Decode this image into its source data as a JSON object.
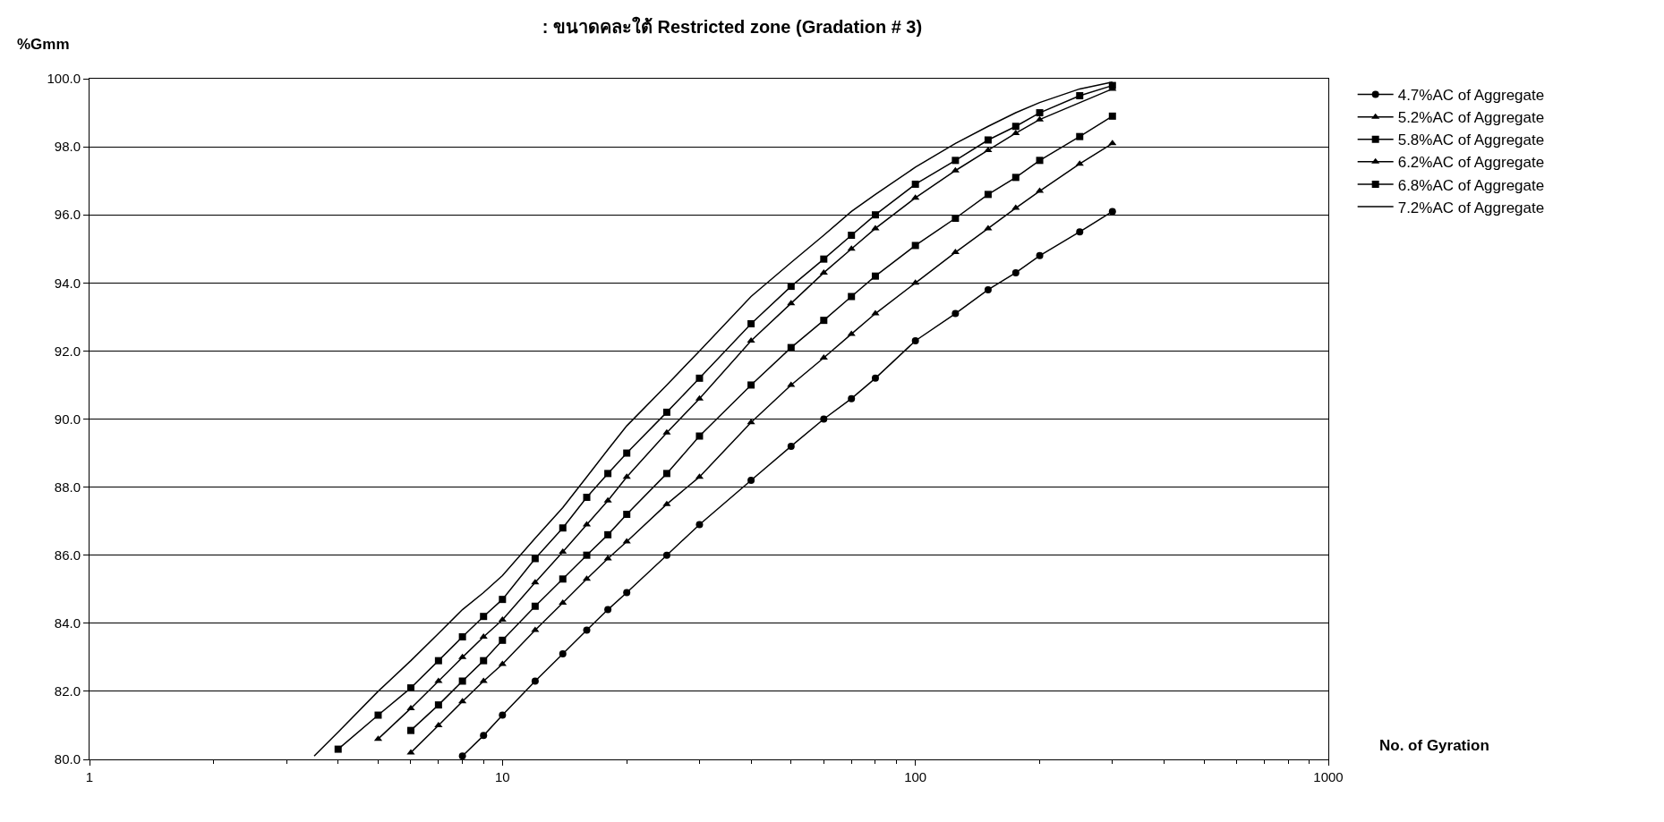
{
  "chart_data": {
    "type": "line",
    "title": ": ขนาดคละใต้ Restricted zone (Gradation # 3)",
    "ylabel": "%Gmm",
    "xlabel": "No. of Gyration",
    "log": "x",
    "xlim": [
      1,
      1000
    ],
    "xticks": [
      1,
      10,
      100,
      1000
    ],
    "ylim": [
      80,
      100
    ],
    "yticks": [
      {
        "value": 80,
        "label": "80.0"
      },
      {
        "value": 82,
        "label": "82.0"
      },
      {
        "value": 84,
        "label": "84.0"
      },
      {
        "value": 86,
        "label": "86.0"
      },
      {
        "value": 88,
        "label": "88.0"
      },
      {
        "value": 90,
        "label": "90.0"
      },
      {
        "value": 92,
        "label": "92.0"
      },
      {
        "value": 94,
        "label": "94.0"
      },
      {
        "value": 96,
        "label": "96.0"
      },
      {
        "value": 98,
        "label": "98.0"
      },
      {
        "value": 100,
        "label": "100.0"
      }
    ],
    "grid": "y",
    "legend": "top right",
    "series": [
      {
        "name": "4.7%AC of Aggregate",
        "color": "#000000",
        "marker": "circle",
        "x": [
          8,
          9,
          10,
          12,
          14,
          16,
          18,
          20,
          25,
          30,
          40,
          50,
          60,
          70,
          80,
          100,
          125,
          150,
          175,
          200,
          250,
          300
        ],
        "values": [
          80.1,
          80.7,
          81.3,
          82.3,
          83.1,
          83.8,
          84.4,
          84.9,
          86.0,
          86.9,
          88.2,
          89.2,
          90.0,
          90.6,
          91.2,
          92.3,
          93.1,
          93.8,
          94.3,
          94.8,
          95.5,
          96.1
        ]
      },
      {
        "name": "5.2%AC of Aggregate",
        "color": "#000000",
        "marker": "triangle",
        "x": [
          6,
          7,
          8,
          9,
          10,
          12,
          14,
          16,
          18,
          20,
          25,
          30,
          40,
          50,
          60,
          70,
          80,
          100,
          125,
          150,
          175,
          200,
          250,
          300
        ],
        "values": [
          80.2,
          81.0,
          81.7,
          82.3,
          82.8,
          83.8,
          84.6,
          85.3,
          85.9,
          86.4,
          87.5,
          88.3,
          89.9,
          91.0,
          91.8,
          92.5,
          93.1,
          94.0,
          94.9,
          95.6,
          96.2,
          96.7,
          97.5,
          98.1
        ]
      },
      {
        "name": "5.8%AC of Aggregate",
        "color": "#000000",
        "marker": "square",
        "x": [
          6,
          7,
          8,
          9,
          10,
          12,
          14,
          16,
          18,
          20,
          25,
          30,
          40,
          50,
          60,
          70,
          80,
          100,
          125,
          150,
          175,
          200,
          250,
          300
        ],
        "values": [
          80.85,
          81.6,
          82.3,
          82.9,
          83.5,
          84.5,
          85.3,
          86.0,
          86.6,
          87.2,
          88.4,
          89.5,
          91.0,
          92.1,
          92.9,
          93.6,
          94.2,
          95.1,
          95.9,
          96.6,
          97.1,
          97.6,
          98.3,
          98.9
        ]
      },
      {
        "name": "6.2%AC of Aggregate",
        "color": "#000000",
        "marker": "triangle",
        "x": [
          5,
          6,
          7,
          8,
          9,
          10,
          12,
          14,
          16,
          18,
          20,
          25,
          30,
          40,
          50,
          60,
          70,
          80,
          100,
          125,
          150,
          175,
          200,
          250,
          300
        ],
        "values": [
          80.6,
          81.5,
          82.3,
          83.0,
          83.6,
          84.1,
          85.2,
          86.1,
          86.9,
          87.6,
          88.3,
          89.6,
          90.6,
          92.3,
          93.4,
          94.3,
          95.0,
          95.6,
          96.5,
          97.3,
          97.9,
          98.4,
          98.8,
          null,
          99.7
        ]
      },
      {
        "name": "6.8%AC of Aggregate",
        "color": "#000000",
        "marker": "square",
        "x": [
          4,
          5,
          6,
          7,
          8,
          9,
          10,
          12,
          14,
          16,
          18,
          20,
          25,
          30,
          40,
          50,
          60,
          70,
          80,
          100,
          125,
          150,
          175,
          200,
          250,
          300
        ],
        "values": [
          80.3,
          81.3,
          82.1,
          82.9,
          83.6,
          84.2,
          84.7,
          85.9,
          86.8,
          87.7,
          88.4,
          89.0,
          90.2,
          91.2,
          92.8,
          93.9,
          94.7,
          95.4,
          96.0,
          96.9,
          97.6,
          98.2,
          98.6,
          99.0,
          99.5,
          99.8
        ]
      },
      {
        "name": "7.2%AC of Aggregate",
        "color": "#000000",
        "marker": "none",
        "x": [
          3.5,
          4,
          5,
          6,
          7,
          8,
          9,
          10,
          12,
          14,
          16,
          18,
          20,
          25,
          30,
          40,
          50,
          60,
          70,
          80,
          100,
          125,
          150,
          175,
          200,
          250,
          300
        ],
        "values": [
          80.1,
          80.8,
          82.0,
          82.9,
          83.7,
          84.4,
          84.9,
          85.4,
          86.5,
          87.4,
          88.3,
          89.1,
          89.8,
          91.0,
          92.0,
          93.6,
          94.6,
          95.4,
          96.1,
          96.6,
          97.4,
          98.1,
          98.6,
          99.0,
          99.3,
          99.7,
          99.9
        ]
      }
    ]
  }
}
